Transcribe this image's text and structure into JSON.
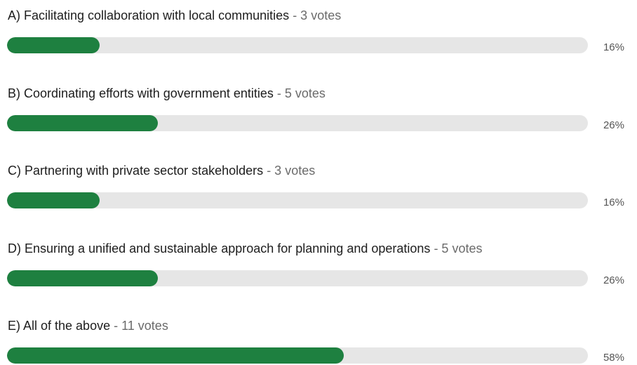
{
  "poll": {
    "options": [
      {
        "label": "A) Facilitating collaboration with local communities",
        "votes": "- 3 votes",
        "percent": 16,
        "percent_label": "16%"
      },
      {
        "label": "B) Coordinating efforts with government entities",
        "votes": "- 5 votes",
        "percent": 26,
        "percent_label": "26%"
      },
      {
        "label": "C) Partnering with private sector stakeholders",
        "votes": "- 3 votes",
        "percent": 16,
        "percent_label": "16%"
      },
      {
        "label": "D) Ensuring a unified and sustainable approach for planning and operations",
        "votes": "- 5 votes",
        "percent": 26,
        "percent_label": "26%"
      },
      {
        "label": "E) All of the above",
        "votes": "- 11 votes",
        "percent": 58,
        "percent_label": "58%"
      }
    ]
  }
}
